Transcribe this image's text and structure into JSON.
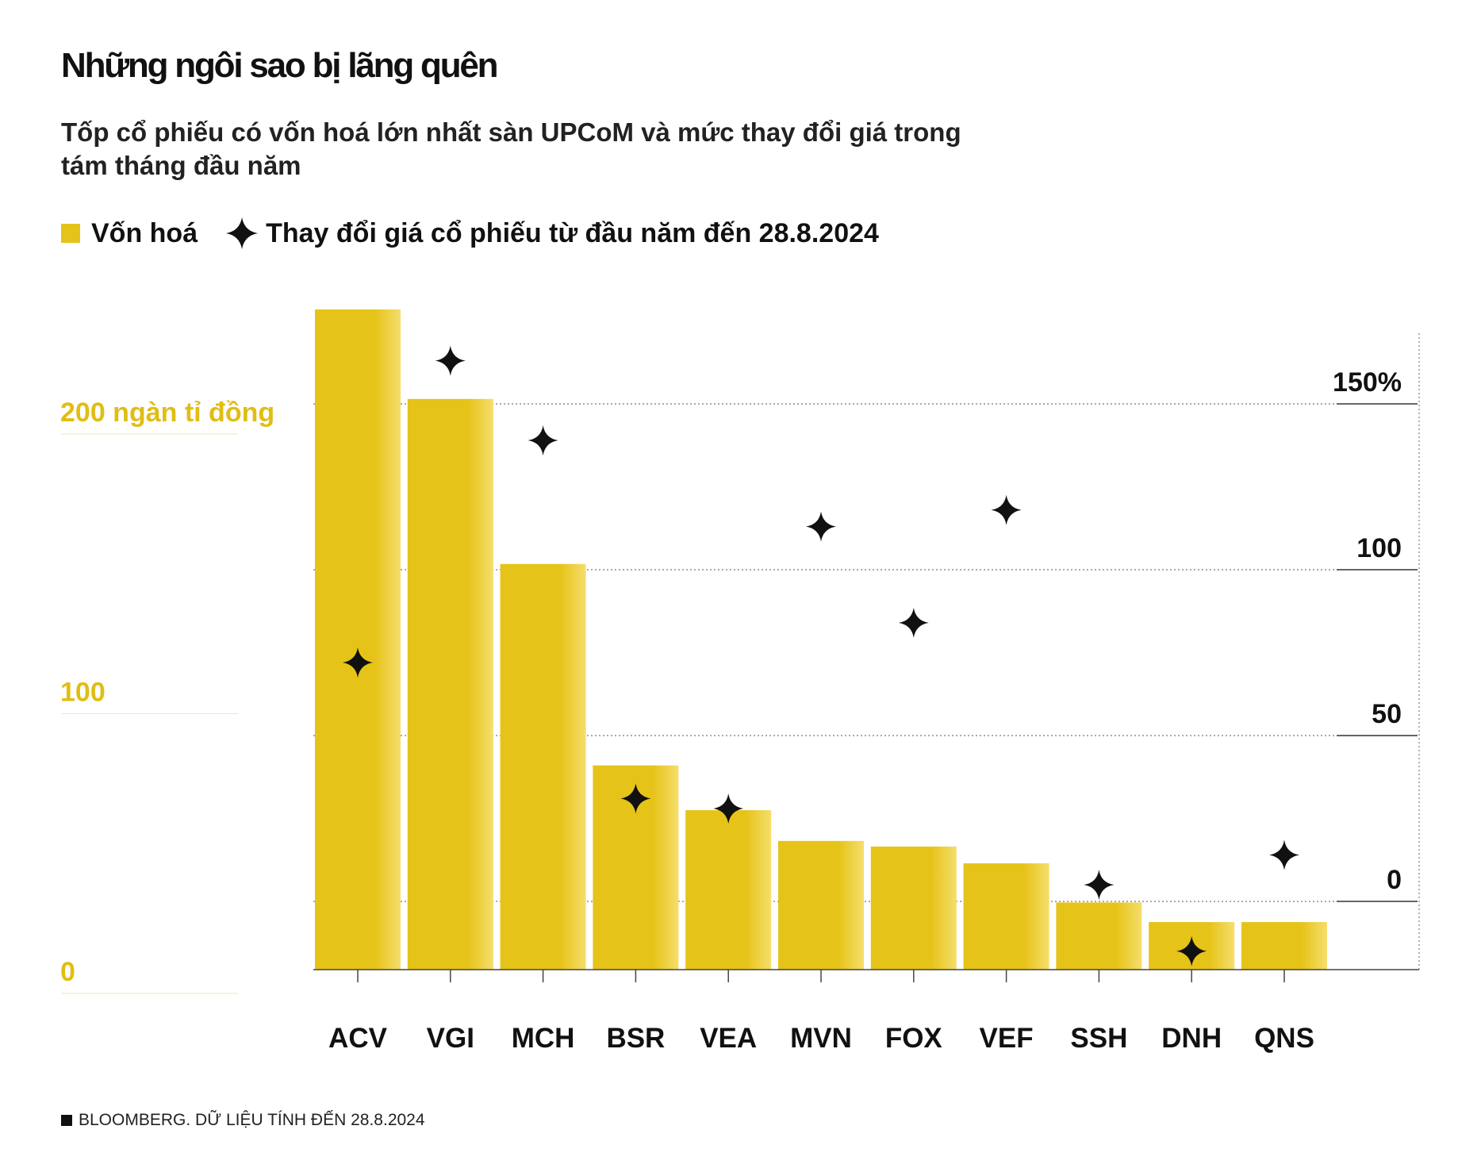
{
  "title": "Những ngôi sao bị lãng quên",
  "subtitle": "Tốp cổ phiếu có vốn hoá lớn nhất sàn UPCoM và mức thay đổi giá trong tám tháng đầu năm",
  "legend": {
    "bar_label": "Vốn hoá",
    "star_label": "Thay đổi giá cổ phiếu từ đầu năm đến 28.8.2024"
  },
  "source": "BLOOMBERG. DỮ LIỆU TÍNH ĐẾN 28.8.2024",
  "colors": {
    "bar": "#e6c318",
    "bar_light": "#f5de6c",
    "star": "#111111",
    "left_axis": "#e1bd14",
    "text": "#111111"
  },
  "chart_data": {
    "type": "bar",
    "categories": [
      "ACV",
      "VGI",
      "MCH",
      "BSR",
      "VEA",
      "MVN",
      "FOX",
      "VEF",
      "SSH",
      "DNH",
      "QNS"
    ],
    "series": [
      {
        "name": "Vốn hoá",
        "axis": "left",
        "unit": "ngàn tỉ đồng",
        "values": [
          236,
          204,
          145,
          73,
          57,
          46,
          44,
          38,
          24,
          17,
          17
        ]
      },
      {
        "name": "Thay đổi giá cổ phiếu từ đầu năm đến 28.8.2024",
        "axis": "right",
        "marker": "star",
        "unit": "%",
        "values": [
          72,
          163,
          139,
          31,
          28,
          113,
          84,
          118,
          5,
          -15,
          14
        ]
      }
    ],
    "left_axis": {
      "ticks": [
        0,
        100,
        200
      ],
      "tick_labels": [
        "0",
        "100",
        "200 ngàn tỉ đồng"
      ],
      "ylim": [
        0,
        236
      ]
    },
    "right_axis": {
      "ticks": [
        0,
        50,
        100,
        150
      ],
      "tick_labels": [
        "0",
        "50",
        "100",
        "150%"
      ],
      "ylim": [
        -20,
        170
      ]
    }
  }
}
